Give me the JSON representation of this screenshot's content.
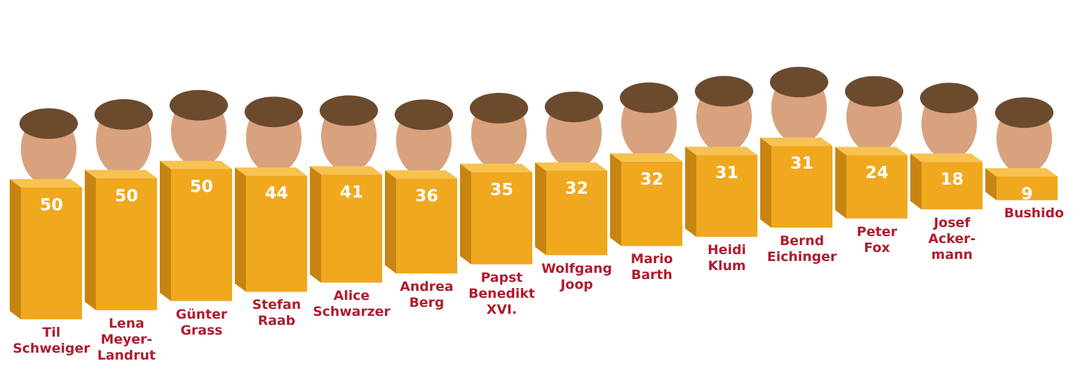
{
  "chart_data": {
    "type": "bar",
    "categories": [
      "Til\nSchweiger",
      "Lena\nMeyer-\nLandrut",
      "Günter\nGrass",
      "Stefan\nRaab",
      "Alice\nSchwarzer",
      "Andrea\nBerg",
      "Papst\nBenedikt\nXVI.",
      "Wolfgang\nJoop",
      "Mario\nBarth",
      "Heidi\nKlum",
      "Bernd\nEichinger",
      "Peter\nFox",
      "Josef\nAcker-\nmann",
      "Bushido"
    ],
    "values": [
      50,
      50,
      50,
      44,
      41,
      36,
      35,
      32,
      32,
      31,
      31,
      24,
      18,
      9
    ],
    "color": "#f0a81e"
  }
}
